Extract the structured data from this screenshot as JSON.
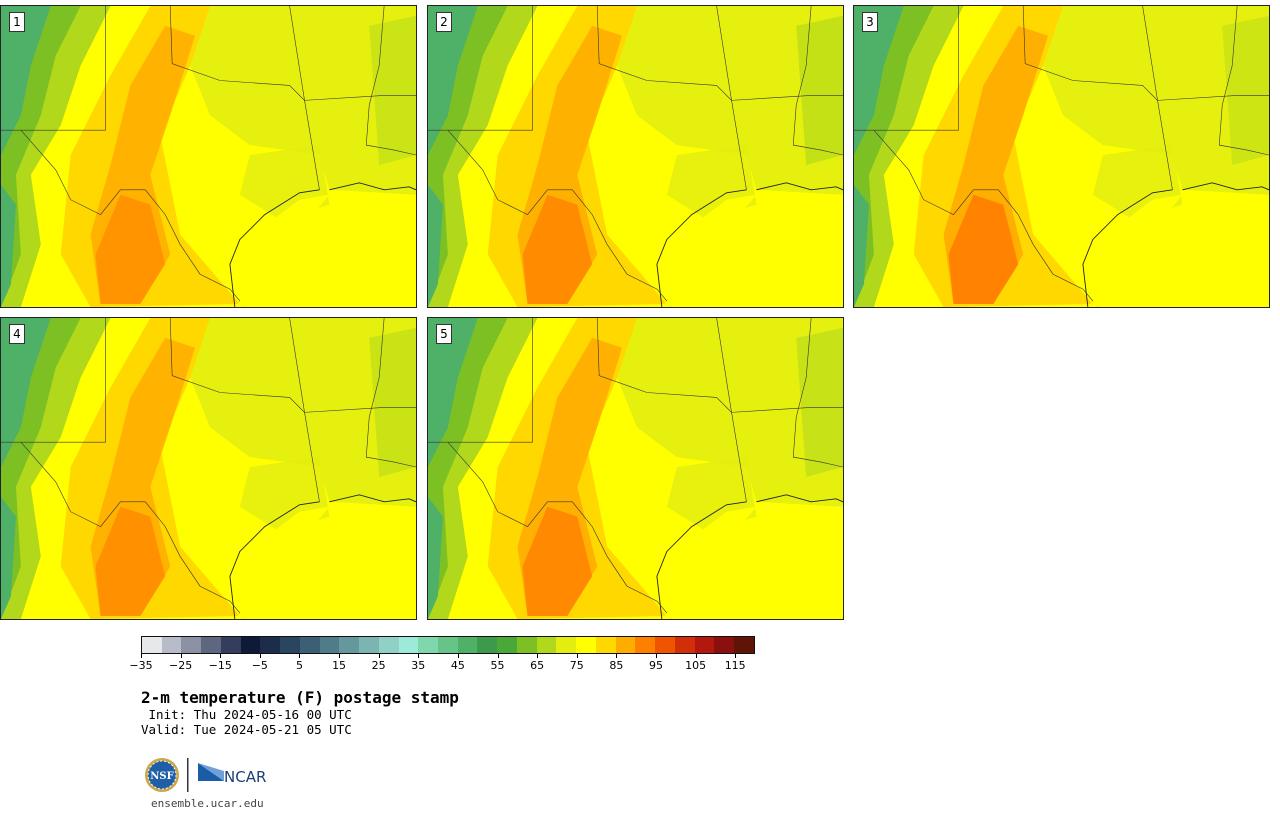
{
  "panels": [
    {
      "label": "1"
    },
    {
      "label": "2"
    },
    {
      "label": "3"
    },
    {
      "label": "4"
    },
    {
      "label": "5"
    }
  ],
  "colorbar": {
    "colors": [
      "#e6e8ec",
      "#b8bcc8",
      "#8c91a3",
      "#5f6680",
      "#353d5e",
      "#0f1a38",
      "#1b2c4c",
      "#2a4560",
      "#3b5f74",
      "#4f7c88",
      "#64989c",
      "#7bb4b0",
      "#90d0c6",
      "#9cebd8",
      "#7ed8ac",
      "#66c488",
      "#4fb068",
      "#3c9a4a",
      "#4aa838",
      "#7cc024",
      "#b2d81c",
      "#e2ee10",
      "#ffff00",
      "#ffd800",
      "#ffac00",
      "#ff8000",
      "#f05400",
      "#d22e08",
      "#b2180e",
      "#8a1010",
      "#601408"
    ],
    "tick_labels": [
      "−35",
      "−25",
      "−15",
      "−5",
      "5",
      "15",
      "25",
      "35",
      "45",
      "55",
      "65",
      "75",
      "85",
      "95",
      "105",
      "115"
    ]
  },
  "title": "2-m temperature (F) postage stamp",
  "init": " Init: Thu 2024-05-16 00 UTC",
  "valid": "Valid: Tue 2024-05-21 05 UTC",
  "logos": {
    "nsf": "NSF",
    "ncar": "NCAR"
  },
  "url": "ensemble.ucar.edu"
}
